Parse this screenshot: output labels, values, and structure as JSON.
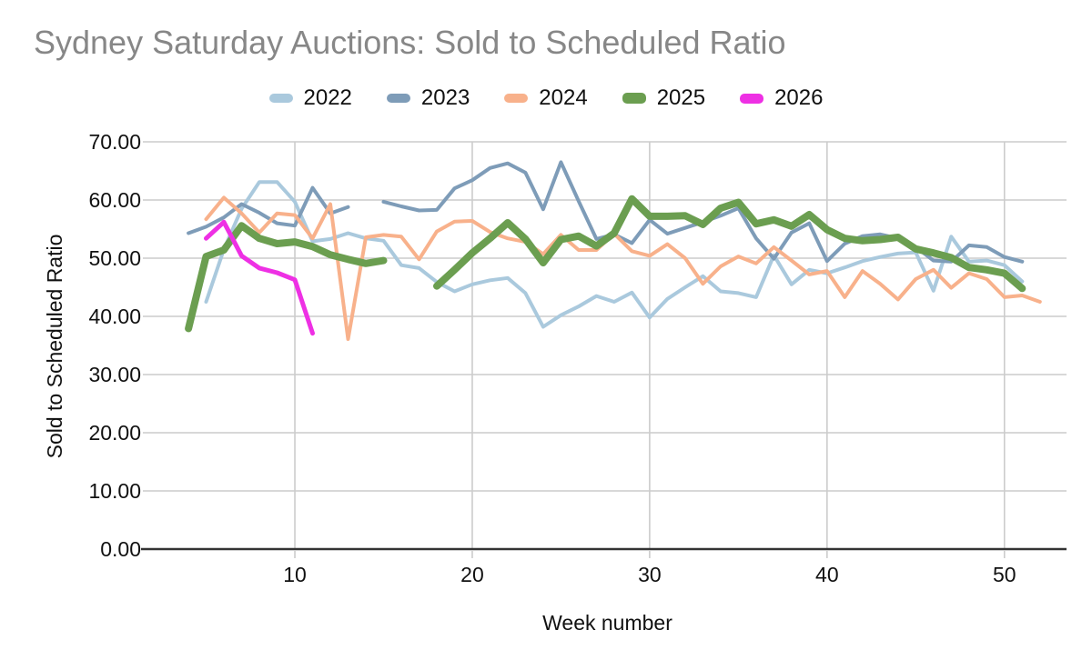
{
  "chart_data": {
    "type": "line",
    "title": "Sydney Saturday Auctions: Sold to Scheduled Ratio",
    "title_color": "#878787",
    "xlabel": "Week number",
    "ylabel": "Sold to Scheduled Ratio",
    "xlim": [
      1.74,
      53.5
    ],
    "ylim": [
      0,
      70
    ],
    "grid": true,
    "legend_position": "top-center",
    "axis_text_color": "#111111",
    "gridline_color": "#cccccc",
    "baseline_color": "#333333",
    "x_ticks": [
      {
        "value": 10,
        "label": "10"
      },
      {
        "value": 20,
        "label": "20"
      },
      {
        "value": 30,
        "label": "30"
      },
      {
        "value": 40,
        "label": "40"
      },
      {
        "value": 50,
        "label": "50"
      }
    ],
    "y_ticks": [
      {
        "value": 0,
        "label": "0.00"
      },
      {
        "value": 10,
        "label": "10.00"
      },
      {
        "value": 20,
        "label": "20.00"
      },
      {
        "value": 30,
        "label": "30.00"
      },
      {
        "value": 40,
        "label": "40.00"
      },
      {
        "value": 50,
        "label": "50.00"
      },
      {
        "value": 60,
        "label": "60.00"
      },
      {
        "value": 70,
        "label": "70.00"
      }
    ],
    "series": [
      {
        "name": "2022",
        "color": "#aac9dd",
        "stroke_width": 4,
        "points": [
          [
            5,
            42.5
          ],
          [
            6,
            51.5
          ],
          [
            7,
            58.5
          ],
          [
            8,
            63.1
          ],
          [
            9,
            63.1
          ],
          [
            10,
            59.7
          ],
          [
            11,
            52.9
          ],
          [
            12,
            53.3
          ],
          [
            13,
            54.3
          ],
          [
            14,
            53.4
          ],
          [
            15,
            53.0
          ],
          [
            16,
            48.8
          ],
          [
            17,
            48.3
          ],
          [
            18,
            45.9
          ],
          [
            19,
            44.3
          ],
          [
            20,
            45.5
          ],
          [
            21,
            46.2
          ],
          [
            22,
            46.6
          ],
          [
            23,
            44.0
          ],
          [
            24,
            38.2
          ],
          [
            25,
            40.2
          ],
          [
            26,
            41.7
          ],
          [
            27,
            43.5
          ],
          [
            28,
            42.5
          ],
          [
            29,
            44.1
          ],
          [
            30,
            39.8
          ],
          [
            31,
            43.0
          ],
          [
            32,
            45.0
          ],
          [
            33,
            46.9
          ],
          [
            34,
            44.3
          ],
          [
            35,
            44.0
          ],
          [
            36,
            43.3
          ],
          [
            37,
            50.5
          ],
          [
            38,
            45.5
          ],
          [
            39,
            48.0
          ],
          [
            40,
            47.4
          ],
          [
            41,
            48.4
          ],
          [
            42,
            49.5
          ],
          [
            43,
            50.2
          ],
          [
            44,
            50.8
          ],
          [
            45,
            51.0
          ],
          [
            46,
            44.4
          ],
          [
            47,
            53.7
          ],
          [
            48,
            49.4
          ],
          [
            49,
            49.6
          ],
          [
            50,
            48.8
          ],
          [
            51,
            46.0
          ]
        ]
      },
      {
        "name": "2023",
        "color": "#7e9cb8",
        "stroke_width": 4,
        "points": [
          [
            4,
            54.3
          ],
          [
            5,
            55.4
          ],
          [
            6,
            57.0
          ],
          [
            7,
            59.3
          ],
          [
            8,
            57.8
          ],
          [
            9,
            56.0
          ],
          [
            10,
            55.6
          ],
          [
            11,
            62.1
          ],
          [
            12,
            57.7
          ],
          [
            13,
            58.8
          ],
          [
            15,
            59.7
          ],
          [
            16,
            58.9
          ],
          [
            17,
            58.2
          ],
          [
            18,
            58.3
          ],
          [
            19,
            62.0
          ],
          [
            20,
            63.4
          ],
          [
            21,
            65.5
          ],
          [
            22,
            66.3
          ],
          [
            23,
            64.7
          ],
          [
            24,
            58.4
          ],
          [
            25,
            66.5
          ],
          [
            26,
            59.8
          ],
          [
            27,
            53.3
          ],
          [
            28,
            54.1
          ],
          [
            29,
            52.6
          ],
          [
            30,
            56.6
          ],
          [
            31,
            54.2
          ],
          [
            32,
            55.2
          ],
          [
            33,
            56.2
          ],
          [
            34,
            57.3
          ],
          [
            35,
            58.6
          ],
          [
            36,
            53.4
          ],
          [
            37,
            49.9
          ],
          [
            38,
            54.4
          ],
          [
            39,
            56.0
          ],
          [
            40,
            49.5
          ],
          [
            41,
            52.5
          ],
          [
            42,
            53.8
          ],
          [
            43,
            54.1
          ],
          [
            44,
            53.4
          ],
          [
            45,
            51.9
          ],
          [
            46,
            49.6
          ],
          [
            47,
            49.4
          ],
          [
            48,
            52.2
          ],
          [
            49,
            51.9
          ],
          [
            50,
            50.2
          ],
          [
            51,
            49.4
          ]
        ]
      },
      {
        "name": "2024",
        "color": "#f8b18b",
        "stroke_width": 4,
        "points": [
          [
            5,
            56.7
          ],
          [
            6,
            60.4
          ],
          [
            7,
            57.7
          ],
          [
            8,
            54.4
          ],
          [
            9,
            57.7
          ],
          [
            10,
            57.4
          ],
          [
            11,
            53.4
          ],
          [
            12,
            59.3
          ],
          [
            13,
            36.1
          ],
          [
            14,
            53.6
          ],
          [
            15,
            54.0
          ],
          [
            16,
            53.7
          ],
          [
            17,
            49.8
          ],
          [
            18,
            54.6
          ],
          [
            19,
            56.3
          ],
          [
            20,
            56.4
          ],
          [
            21,
            54.5
          ],
          [
            22,
            53.4
          ],
          [
            23,
            52.8
          ],
          [
            24,
            50.7
          ],
          [
            25,
            54.0
          ],
          [
            26,
            51.4
          ],
          [
            27,
            51.4
          ],
          [
            28,
            54.2
          ],
          [
            29,
            51.2
          ],
          [
            30,
            50.4
          ],
          [
            31,
            52.4
          ],
          [
            32,
            50.0
          ],
          [
            33,
            45.6
          ],
          [
            34,
            48.6
          ],
          [
            35,
            50.3
          ],
          [
            36,
            49.1
          ],
          [
            37,
            51.9
          ],
          [
            38,
            49.6
          ],
          [
            39,
            47.2
          ],
          [
            40,
            47.8
          ],
          [
            41,
            43.3
          ],
          [
            42,
            47.8
          ],
          [
            43,
            45.6
          ],
          [
            44,
            42.9
          ],
          [
            45,
            46.4
          ],
          [
            46,
            48.0
          ],
          [
            47,
            44.9
          ],
          [
            48,
            47.4
          ],
          [
            49,
            46.4
          ],
          [
            50,
            43.3
          ],
          [
            51,
            43.6
          ],
          [
            52,
            42.5
          ]
        ]
      },
      {
        "name": "2025",
        "color": "#6b9e50",
        "stroke_width": 8,
        "points": [
          [
            4,
            37.9
          ],
          [
            5,
            50.3
          ],
          [
            6,
            51.4
          ],
          [
            7,
            55.6
          ],
          [
            8,
            53.4
          ],
          [
            9,
            52.5
          ],
          [
            10,
            52.8
          ],
          [
            11,
            52.0
          ],
          [
            12,
            50.6
          ],
          [
            13,
            49.8
          ],
          [
            14,
            49.1
          ],
          [
            15,
            49.6
          ],
          [
            18,
            45.2
          ],
          [
            19,
            48.0
          ],
          [
            20,
            50.9
          ],
          [
            21,
            53.4
          ],
          [
            22,
            56.1
          ],
          [
            23,
            53.3
          ],
          [
            24,
            49.2
          ],
          [
            25,
            53.2
          ],
          [
            26,
            53.8
          ],
          [
            27,
            52.1
          ],
          [
            28,
            54.3
          ],
          [
            29,
            60.2
          ],
          [
            30,
            57.2
          ],
          [
            31,
            57.2
          ],
          [
            32,
            57.3
          ],
          [
            33,
            55.8
          ],
          [
            34,
            58.6
          ],
          [
            35,
            59.6
          ],
          [
            36,
            55.9
          ],
          [
            37,
            56.6
          ],
          [
            38,
            55.5
          ],
          [
            39,
            57.5
          ],
          [
            40,
            54.9
          ],
          [
            41,
            53.4
          ],
          [
            42,
            53.0
          ],
          [
            43,
            53.2
          ],
          [
            44,
            53.6
          ],
          [
            45,
            51.6
          ],
          [
            46,
            50.9
          ],
          [
            47,
            50.1
          ],
          [
            48,
            48.4
          ],
          [
            49,
            48.0
          ],
          [
            50,
            47.4
          ],
          [
            51,
            44.8
          ]
        ]
      },
      {
        "name": "2026",
        "color": "#ee30e4",
        "stroke_width": 5,
        "points": [
          [
            5,
            53.4
          ],
          [
            6,
            56.2
          ],
          [
            7,
            50.4
          ],
          [
            8,
            48.3
          ],
          [
            9,
            47.5
          ],
          [
            10,
            46.3
          ],
          [
            11,
            37.1
          ]
        ]
      }
    ]
  },
  "layout_note": "line chart, legend above plot, horizontal and vertical gridlines"
}
